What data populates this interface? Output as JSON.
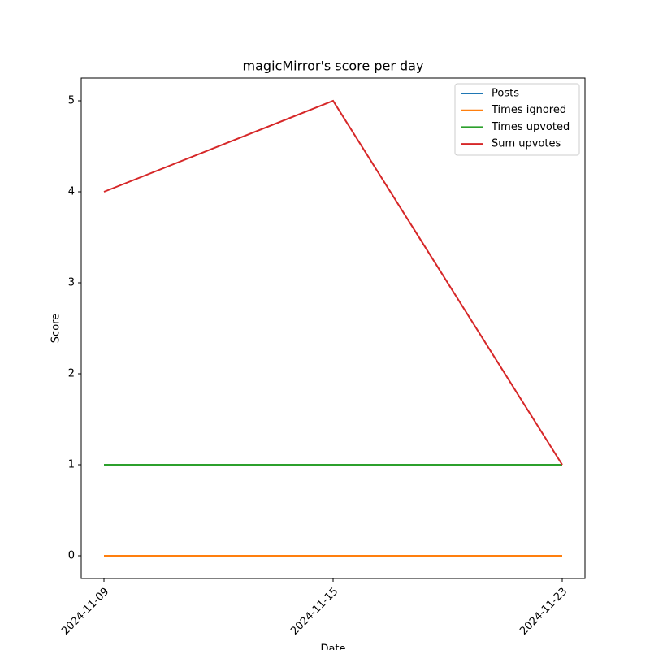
{
  "chart_data": {
    "type": "line",
    "title": "magicMirror's score per day",
    "xlabel": "Date",
    "ylabel": "Score",
    "categories": [
      "2024-11-09",
      "2024-11-15",
      "2024-11-23"
    ],
    "series": [
      {
        "name": "Posts",
        "color": "#1f77b4",
        "values": [
          1,
          1,
          1
        ]
      },
      {
        "name": "Times ignored",
        "color": "#ff7f0e",
        "values": [
          0,
          0,
          0
        ]
      },
      {
        "name": "Times upvoted",
        "color": "#2ca02c",
        "values": [
          1,
          1,
          1
        ]
      },
      {
        "name": "Sum upvotes",
        "color": "#d62728",
        "values": [
          4,
          5,
          1
        ]
      }
    ],
    "ylim": [
      -0.25,
      5.25
    ],
    "yticks": [
      0,
      1,
      2,
      3,
      4,
      5
    ],
    "legend": "upper right"
  }
}
